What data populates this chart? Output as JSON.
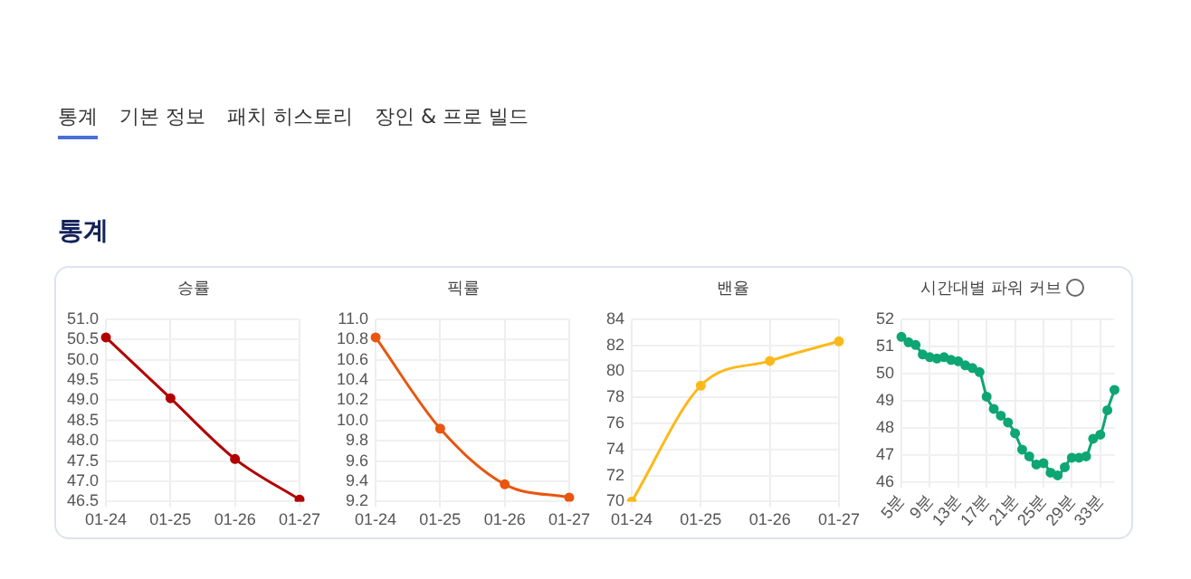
{
  "chart_data": [
    {
      "type": "other",
      "title": "통계",
      "annotations": [
        "통계",
        "기본 정보",
        "패치 히스토리",
        "장인 & 프로 빌드"
      ]
    },
    {
      "type": "line",
      "title": "승률",
      "categories": [
        "01-24",
        "01-25",
        "01-26",
        "01-27"
      ],
      "series": [
        {
          "color": "#b30000",
          "values": [
            50.55,
            49.05,
            47.55,
            46.55
          ]
        }
      ],
      "ylim": [
        46.5,
        51
      ],
      "yticks": [
        {
          "value": 46.5,
          "label": "46.5"
        },
        {
          "value": 47,
          "label": "47.0"
        },
        {
          "value": 47.5,
          "label": "47.5"
        },
        {
          "value": 48,
          "label": "48.0"
        },
        {
          "value": 48.5,
          "label": "48.5"
        },
        {
          "value": 49,
          "label": "49.0"
        },
        {
          "value": 49.5,
          "label": "49.5"
        },
        {
          "value": 50,
          "label": "50.0"
        },
        {
          "value": 50.5,
          "label": "50.5"
        },
        {
          "value": 51,
          "label": "51.0"
        }
      ],
      "grid": true,
      "marker": "circle"
    },
    {
      "type": "line",
      "title": "픽률",
      "categories": [
        "01-24",
        "01-25",
        "01-26",
        "01-27"
      ],
      "series": [
        {
          "color": "#e8560f",
          "values": [
            10.82,
            9.92,
            9.37,
            9.24
          ]
        }
      ],
      "ylim": [
        9.2,
        11
      ],
      "yticks": [
        9.2,
        9.4,
        9.6,
        9.8,
        {
          "value": 10,
          "label": "10.0"
        },
        10.2,
        10.4,
        10.6,
        10.8,
        {
          "value": 11,
          "label": "11.0"
        }
      ],
      "grid": true,
      "marker": "circle"
    },
    {
      "type": "line",
      "title": "밴율",
      "categories": [
        "01-24",
        "01-25",
        "01-26",
        "01-27"
      ],
      "series": [
        {
          "color": "#fbb91a",
          "values": [
            70.0,
            78.9,
            80.8,
            82.3
          ]
        }
      ],
      "ylim": [
        70,
        84
      ],
      "yticks": [
        70,
        72,
        74,
        76,
        78,
        80,
        82,
        84
      ],
      "grid": true,
      "marker": "circle"
    },
    {
      "type": "line",
      "title": "시간대별 파워 커브",
      "categories": [
        "5분",
        null,
        null,
        null,
        "9분",
        null,
        null,
        null,
        "13분",
        null,
        null,
        null,
        "17분",
        null,
        null,
        null,
        "21분",
        null,
        null,
        null,
        "25분",
        null,
        null,
        null,
        "29분",
        null,
        null,
        null,
        "33분",
        null,
        null
      ],
      "series": [
        {
          "color": "#0ea673",
          "values": [
            51.35,
            51.15,
            51.05,
            50.7,
            50.6,
            50.55,
            50.6,
            50.5,
            50.45,
            50.3,
            50.2,
            50.05,
            49.15,
            48.7,
            48.45,
            48.2,
            47.8,
            47.2,
            46.95,
            46.65,
            46.7,
            46.35,
            46.25,
            46.55,
            46.9,
            46.9,
            46.95,
            47.6,
            47.75,
            48.65,
            49.4
          ]
        }
      ],
      "ylim": [
        46,
        52
      ],
      "yticks": [
        46,
        47,
        48,
        49,
        50,
        51,
        52
      ],
      "grid": true,
      "marker": "circle"
    }
  ]
}
